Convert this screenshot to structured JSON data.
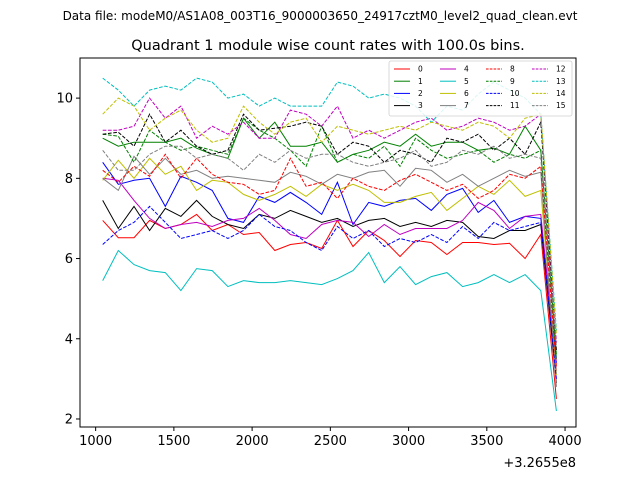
{
  "figure": {
    "suptitle": "Data file: modeM0/AS1A08_003T16_9000003650_24917cztM0_level2_quad_clean.evt"
  },
  "chart_data": {
    "type": "line",
    "title": "Quadrant 1 module wise count rates with 100.0s bins.",
    "xlabel": "",
    "ylabel": "",
    "x_offset_label": "+3.2655e8",
    "xlim": [
      900,
      4070
    ],
    "ylim": [
      1.8,
      11.0
    ],
    "xticks": [
      1000,
      1500,
      2000,
      2500,
      3000,
      3500,
      4000
    ],
    "xtick_labels": [
      "1000",
      "1500",
      "2000",
      "2500",
      "3000",
      "3500",
      "4000"
    ],
    "yticks": [
      2,
      4,
      6,
      8,
      10
    ],
    "ytick_labels": [
      "2",
      "4",
      "6",
      "8",
      "10"
    ],
    "grid": false,
    "legend_position": "top-right",
    "legend_columns": 4,
    "x": [
      1045,
      1145,
      1245,
      1345,
      1445,
      1545,
      1645,
      1745,
      1845,
      1945,
      2045,
      2145,
      2245,
      2345,
      2445,
      2545,
      2645,
      2745,
      2845,
      2945,
      3045,
      3145,
      3245,
      3345,
      3445,
      3545,
      3645,
      3745,
      3845,
      3945
    ],
    "series": [
      {
        "name": "0",
        "color": "#ff0000",
        "dash": "solid",
        "values": [
          6.95,
          6.52,
          6.52,
          6.95,
          6.75,
          6.85,
          7.1,
          6.7,
          6.85,
          6.6,
          6.65,
          6.2,
          6.35,
          6.4,
          6.25,
          6.95,
          6.3,
          6.7,
          6.45,
          6.05,
          6.45,
          6.4,
          6.1,
          6.4,
          6.4,
          6.35,
          6.38,
          6.0,
          6.6,
          2.5
        ]
      },
      {
        "name": "1",
        "color": "#008000",
        "dash": "solid",
        "values": [
          9.0,
          8.8,
          8.9,
          8.9,
          8.9,
          9.0,
          8.75,
          8.6,
          8.5,
          9.5,
          9.0,
          9.4,
          8.8,
          8.8,
          8.9,
          8.4,
          8.6,
          8.7,
          8.9,
          8.8,
          9.1,
          8.8,
          8.9,
          8.9,
          8.7,
          8.75,
          8.6,
          9.3,
          8.7,
          3.5
        ]
      },
      {
        "name": "2",
        "color": "#0000ff",
        "dash": "solid",
        "values": [
          8.4,
          7.85,
          7.95,
          8.0,
          7.3,
          8.05,
          7.9,
          7.7,
          7.0,
          6.9,
          7.55,
          7.4,
          7.65,
          7.4,
          7.1,
          7.9,
          6.85,
          7.4,
          7.3,
          7.45,
          7.5,
          7.2,
          7.6,
          7.75,
          7.15,
          7.45,
          6.9,
          7.05,
          7.0,
          3.4
        ]
      },
      {
        "name": "3",
        "color": "#000000",
        "dash": "solid",
        "values": [
          7.45,
          6.75,
          7.3,
          6.7,
          7.25,
          7.05,
          7.45,
          7.05,
          6.85,
          6.75,
          7.1,
          7.0,
          7.2,
          7.05,
          6.9,
          7.0,
          6.8,
          6.95,
          7.0,
          6.8,
          6.9,
          6.8,
          6.95,
          6.9,
          6.55,
          6.5,
          6.7,
          6.7,
          6.85,
          2.9
        ]
      },
      {
        "name": "4",
        "color": "#bf00bf",
        "dash": "solid",
        "values": [
          8.0,
          7.95,
          7.45,
          7.0,
          6.75,
          6.85,
          6.9,
          6.8,
          6.95,
          7.0,
          7.25,
          6.95,
          6.6,
          6.5,
          6.85,
          6.95,
          6.9,
          6.55,
          6.85,
          6.6,
          6.75,
          6.75,
          6.75,
          6.95,
          7.4,
          7.2,
          6.75,
          7.05,
          7.1,
          3.2
        ]
      },
      {
        "name": "5",
        "color": "#00bfbf",
        "dash": "solid",
        "values": [
          5.45,
          6.2,
          5.85,
          5.7,
          5.65,
          5.2,
          5.75,
          5.7,
          5.3,
          5.45,
          5.4,
          5.4,
          5.45,
          5.4,
          5.35,
          5.5,
          5.7,
          6.15,
          5.4,
          5.8,
          5.35,
          5.55,
          5.65,
          5.3,
          5.4,
          5.6,
          5.4,
          5.6,
          5.2,
          2.2
        ]
      },
      {
        "name": "6",
        "color": "#bfbf00",
        "dash": "solid",
        "values": [
          7.95,
          8.45,
          8.0,
          8.5,
          8.1,
          8.3,
          7.7,
          7.95,
          7.9,
          7.6,
          7.45,
          7.6,
          7.8,
          7.55,
          7.85,
          7.7,
          7.85,
          7.7,
          7.4,
          7.4,
          7.55,
          7.65,
          7.2,
          7.5,
          7.8,
          7.6,
          7.95,
          7.55,
          7.7,
          3.1
        ]
      },
      {
        "name": "7",
        "color": "#808080",
        "dash": "solid",
        "values": [
          8.0,
          7.7,
          8.55,
          8.1,
          8.5,
          8.1,
          8.2,
          8.0,
          8.05,
          8.0,
          7.95,
          7.9,
          8.15,
          8.05,
          7.85,
          8.1,
          8.0,
          8.15,
          8.2,
          7.8,
          8.25,
          8.2,
          7.9,
          8.1,
          7.8,
          8.0,
          8.2,
          8.05,
          8.15,
          2.8
        ]
      },
      {
        "name": "8",
        "color": "#ff0000",
        "dash": "dashed",
        "values": [
          8.2,
          7.9,
          8.3,
          8.05,
          8.6,
          8.0,
          8.5,
          8.1,
          7.9,
          7.85,
          7.6,
          7.7,
          8.5,
          7.8,
          7.9,
          7.5,
          8.0,
          7.8,
          7.7,
          7.95,
          8.1,
          7.9,
          7.7,
          7.85,
          7.5,
          7.7,
          8.1,
          8.0,
          8.3,
          3.3
        ]
      },
      {
        "name": "9",
        "color": "#008000",
        "dash": "dashed",
        "values": [
          9.1,
          9.05,
          8.4,
          9.2,
          8.9,
          8.7,
          8.8,
          8.7,
          8.6,
          9.5,
          9.2,
          9.0,
          8.7,
          8.3,
          9.3,
          8.4,
          8.6,
          8.5,
          8.8,
          8.3,
          9.0,
          8.7,
          8.5,
          8.6,
          8.7,
          8.4,
          8.6,
          8.5,
          8.7,
          3.6
        ]
      },
      {
        "name": "10",
        "color": "#0000ff",
        "dash": "dashed",
        "values": [
          6.35,
          6.7,
          6.9,
          7.3,
          6.9,
          6.5,
          6.6,
          6.7,
          6.5,
          6.7,
          7.1,
          6.8,
          6.7,
          6.4,
          6.2,
          6.8,
          6.5,
          6.7,
          6.3,
          6.5,
          6.4,
          6.6,
          6.4,
          6.8,
          6.5,
          6.9,
          6.7,
          6.8,
          6.9,
          3.0
        ]
      },
      {
        "name": "11",
        "color": "#000000",
        "dash": "dashed",
        "values": [
          9.1,
          9.15,
          8.8,
          9.6,
          8.9,
          9.2,
          8.8,
          8.6,
          8.7,
          9.6,
          9.2,
          9.25,
          9.3,
          9.4,
          9.3,
          8.6,
          8.9,
          8.8,
          8.4,
          8.7,
          8.6,
          8.4,
          9.0,
          8.9,
          9.1,
          8.7,
          9.0,
          8.6,
          9.4,
          3.7
        ]
      },
      {
        "name": "12",
        "color": "#bf00bf",
        "dash": "dashed",
        "values": [
          9.2,
          9.2,
          9.3,
          10.0,
          9.5,
          9.8,
          9.0,
          9.3,
          9.1,
          9.4,
          9.0,
          9.0,
          9.7,
          9.6,
          9.3,
          9.8,
          9.0,
          9.2,
          9.0,
          9.2,
          9.4,
          9.5,
          9.2,
          9.3,
          9.5,
          9.4,
          9.2,
          9.3,
          9.6,
          3.9
        ]
      },
      {
        "name": "13",
        "color": "#00bfbf",
        "dash": "dashed",
        "values": [
          10.5,
          10.2,
          9.8,
          10.2,
          10.3,
          10.2,
          10.5,
          10.4,
          10.0,
          10.1,
          9.8,
          10.0,
          9.8,
          9.8,
          9.8,
          10.4,
          10.3,
          10.0,
          10.1,
          10.0,
          9.8,
          9.4,
          9.8,
          9.7,
          10.1,
          10.4,
          10.2,
          10.0,
          9.6,
          4.2
        ]
      },
      {
        "name": "14",
        "color": "#bfbf00",
        "dash": "dashed",
        "values": [
          9.6,
          10.0,
          9.8,
          9.2,
          9.5,
          9.7,
          9.2,
          8.9,
          9.0,
          9.8,
          9.4,
          9.1,
          9.4,
          9.5,
          8.9,
          9.3,
          9.2,
          9.1,
          9.2,
          9.3,
          9.2,
          9.4,
          9.3,
          9.2,
          9.4,
          9.3,
          9.0,
          9.5,
          9.6,
          4.1
        ]
      },
      {
        "name": "15",
        "color": "#808080",
        "dash": "dashed",
        "values": [
          8.7,
          8.2,
          8.2,
          8.6,
          8.8,
          8.8,
          8.5,
          8.6,
          8.5,
          8.2,
          8.6,
          8.4,
          8.7,
          8.5,
          8.6,
          8.6,
          8.4,
          8.3,
          8.4,
          8.5,
          8.7,
          8.3,
          8.4,
          8.7,
          8.6,
          8.8,
          8.5,
          8.6,
          8.5,
          3.8
        ]
      }
    ]
  }
}
